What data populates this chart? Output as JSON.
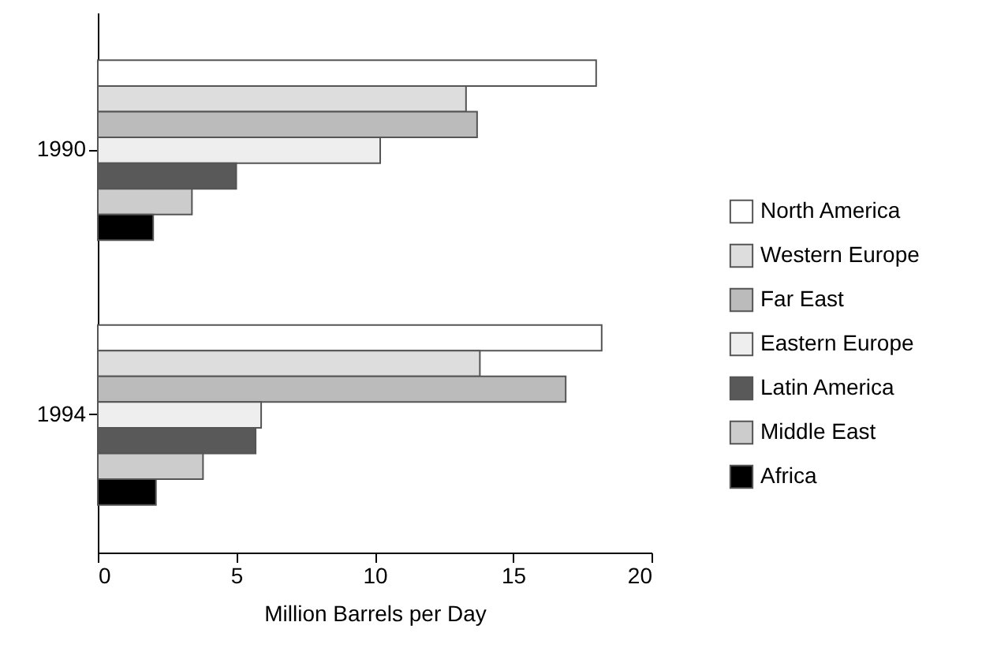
{
  "chart_data": {
    "type": "bar",
    "orientation": "horizontal",
    "xlabel": "Million Barrels per Day",
    "categories": [
      "1990",
      "1994"
    ],
    "series": [
      {
        "name": "North America",
        "color": "#ffffff",
        "values": [
          18.0,
          18.2
        ]
      },
      {
        "name": "Western Europe",
        "color": "#dddddd",
        "values": [
          13.3,
          13.8
        ]
      },
      {
        "name": "Far East",
        "color": "#bbbbbb",
        "values": [
          13.7,
          16.9
        ]
      },
      {
        "name": "Eastern Europe",
        "color": "#eeeeee",
        "values": [
          10.2,
          5.9
        ]
      },
      {
        "name": "Latin America",
        "color": "#595959",
        "values": [
          5.0,
          5.7
        ]
      },
      {
        "name": "Middle East",
        "color": "#cccccc",
        "values": [
          3.4,
          3.8
        ]
      },
      {
        "name": "Africa",
        "color": "#000000",
        "values": [
          2.0,
          2.1
        ]
      }
    ],
    "xlim": [
      0,
      20
    ],
    "xticks": [
      0,
      5,
      10,
      15,
      20
    ],
    "grid": false,
    "legend": "right"
  }
}
